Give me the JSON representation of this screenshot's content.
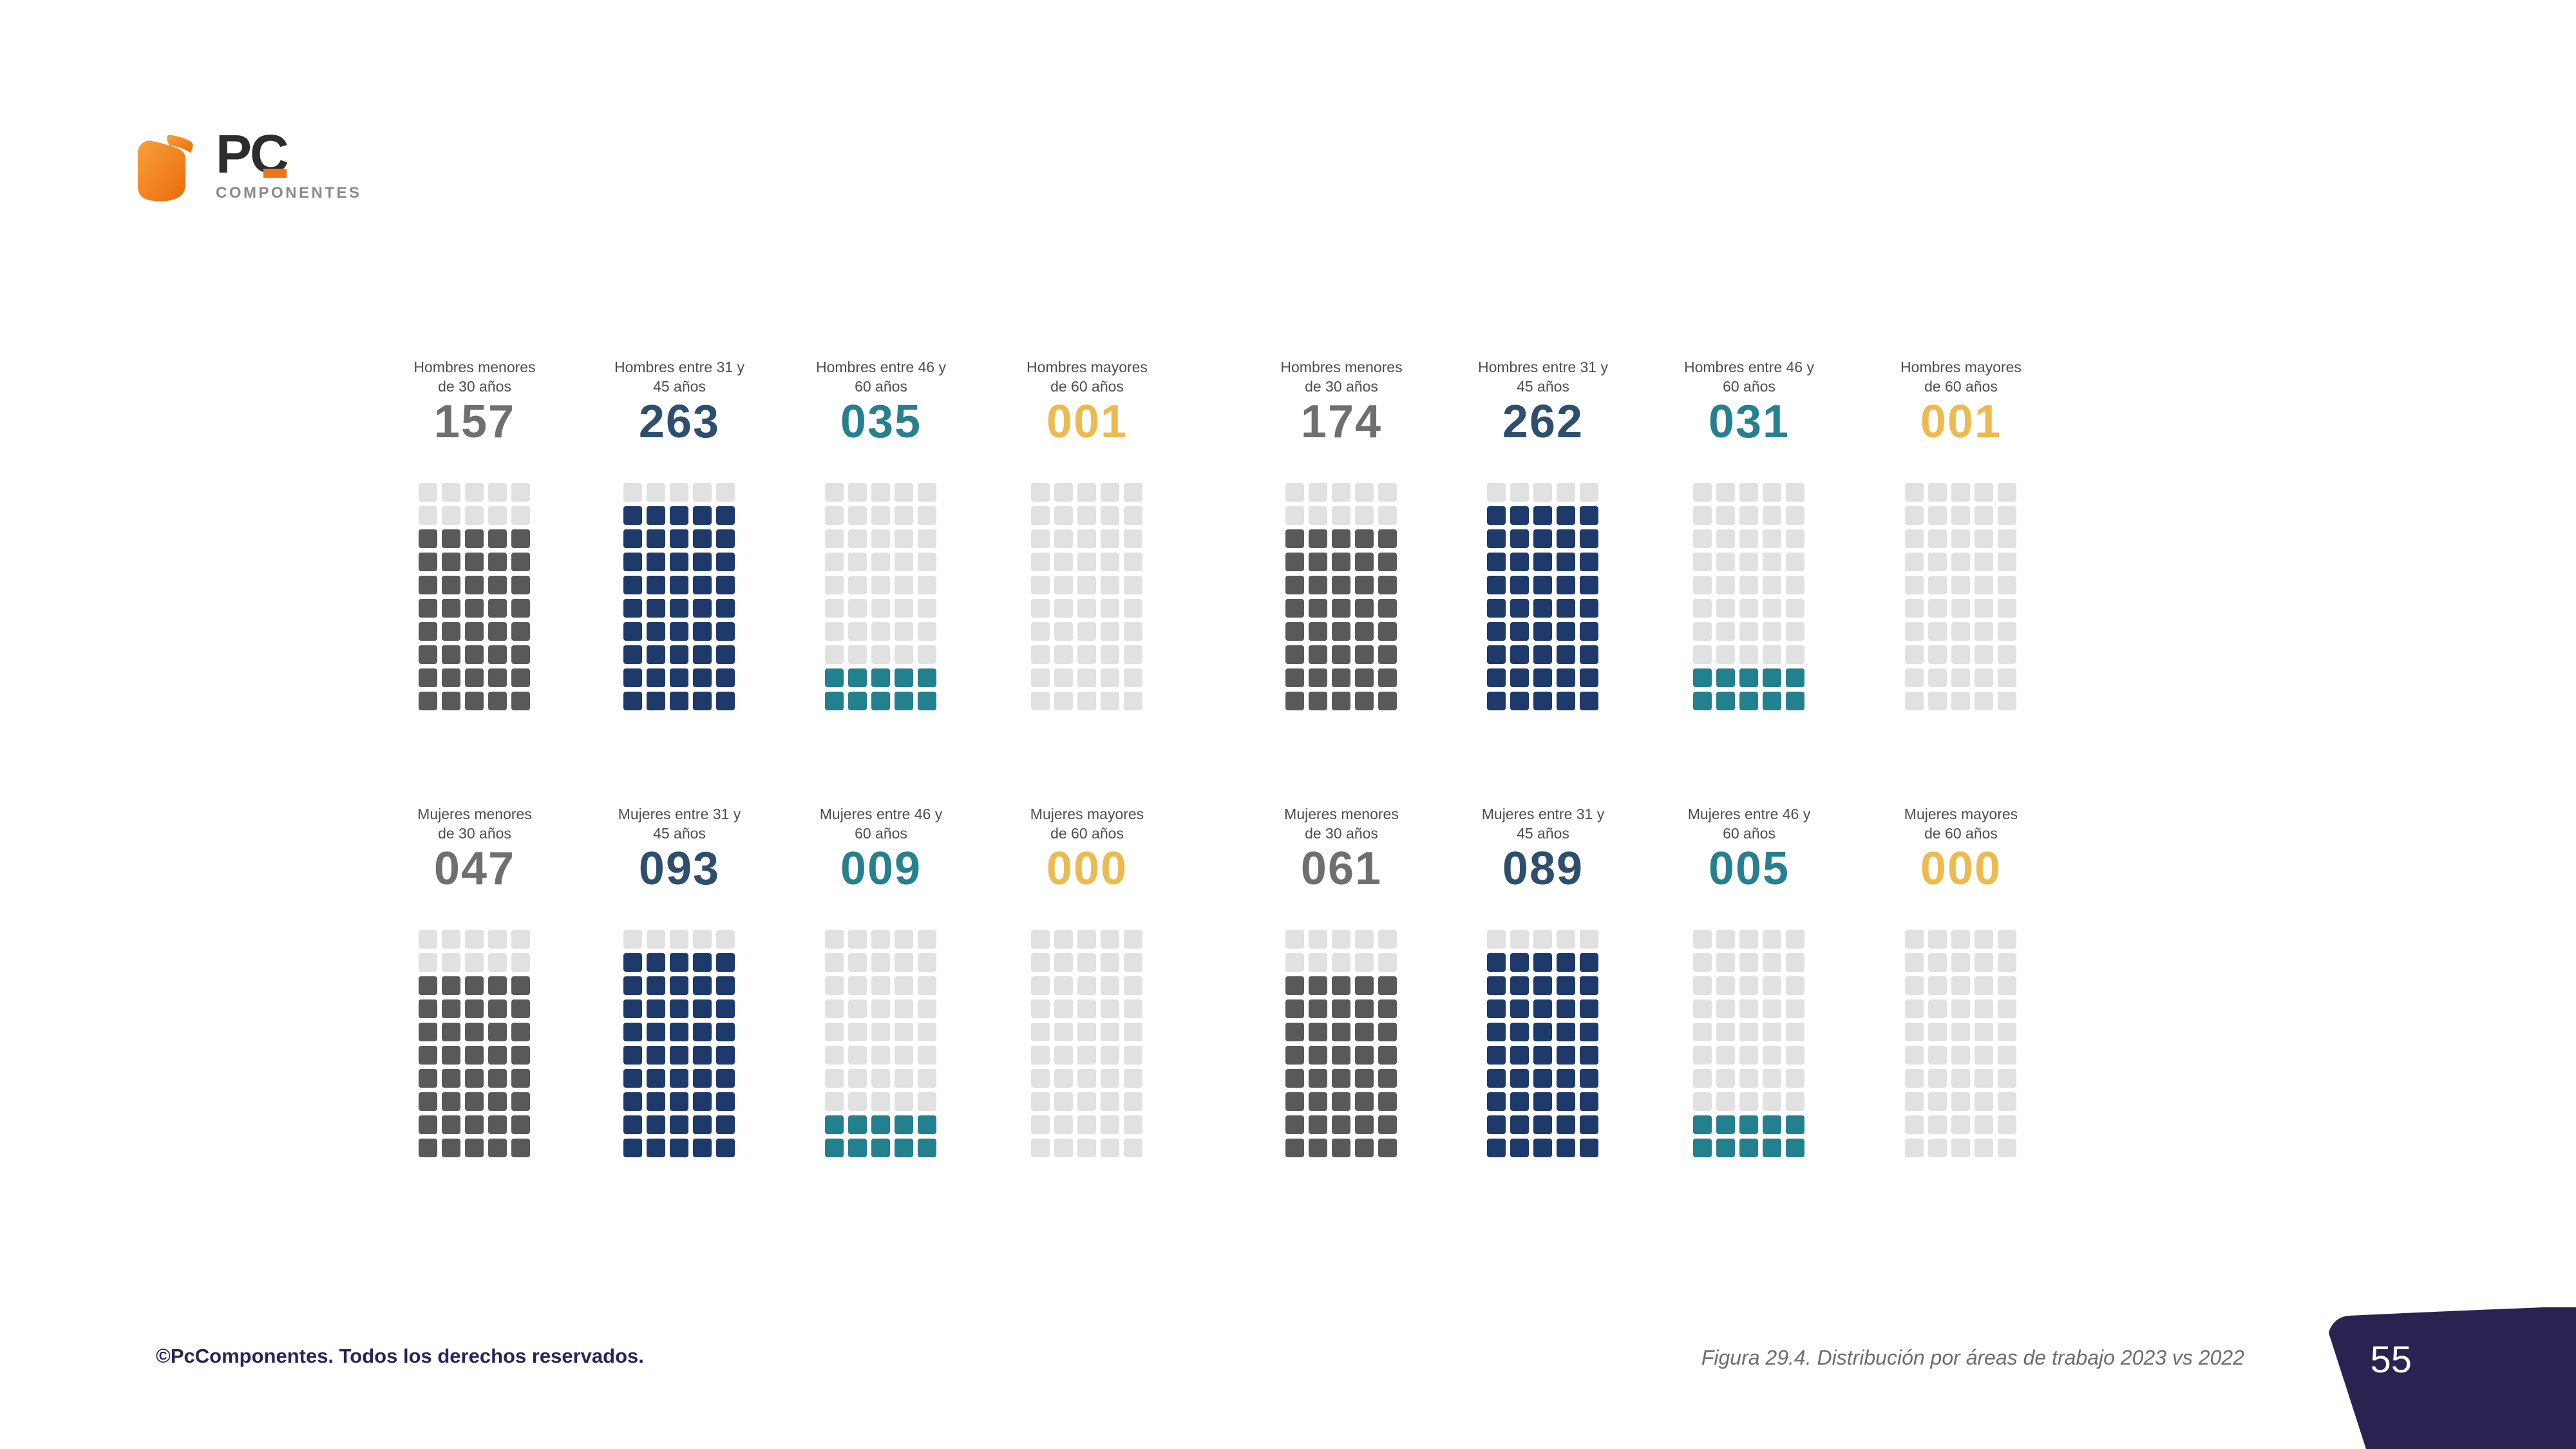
{
  "logo": {
    "brand": "PC",
    "subbrand": "COMPONENTES"
  },
  "footer": {
    "copyright": "©PcComponentes. Todos los derechos reservados.",
    "caption": "Figura 29.4. Distribución por áreas de trabajo 2023 vs 2022",
    "page_number": "55"
  },
  "colors": {
    "brand_orange": "#f07413",
    "footer_navy": "#29235c",
    "badge_navy": "#2a2352",
    "label_gray": "#4d4d4d",
    "caption_gray": "#6d6d6d"
  },
  "chart_data": {
    "type": "waffle",
    "title": "Figura 29.4. Distribución por áreas de trabajo 2023 vs 2022",
    "grid": {
      "rows": 10,
      "cols": 5,
      "total_squares_per_waffle": 50
    },
    "legend_position": "none",
    "palette": {
      "gray": {
        "number": "#6f6f6f",
        "square": "#595959"
      },
      "navy": {
        "number": "#2d4f6d",
        "square": "#1e3a6b"
      },
      "teal": {
        "number": "#27808f",
        "square": "#23808e"
      },
      "yellow": {
        "number": "#ecba4e",
        "square": null
      },
      "empty_square": "#e1e1e1"
    },
    "series": [
      {
        "group": "Hombres",
        "cells": [
          {
            "label_line1": "Hombres menores",
            "label_line2": "de 30 años",
            "display": "157",
            "value": 157,
            "color": "gray",
            "empty_rows": 2,
            "filled_rows": 8
          },
          {
            "label_line1": "Hombres entre 31 y",
            "label_line2": "45 años",
            "display": "263",
            "value": 263,
            "color": "navy",
            "empty_rows": 1,
            "filled_rows": 9
          },
          {
            "label_line1": "Hombres entre 46 y",
            "label_line2": "60 años",
            "display": "035",
            "value": 35,
            "color": "teal",
            "empty_rows": 8,
            "filled_rows": 2
          },
          {
            "label_line1": "Hombres mayores",
            "label_line2": "de 60 años",
            "display": "001",
            "value": 1,
            "color": "yellow",
            "empty_rows": 10,
            "filled_rows": 0
          },
          {
            "label_line1": "Hombres menores",
            "label_line2": "de 30 años",
            "display": "174",
            "value": 174,
            "color": "gray",
            "empty_rows": 2,
            "filled_rows": 8
          },
          {
            "label_line1": "Hombres entre 31 y",
            "label_line2": "45 años",
            "display": "262",
            "value": 262,
            "color": "navy",
            "empty_rows": 1,
            "filled_rows": 9
          },
          {
            "label_line1": "Hombres entre 46 y",
            "label_line2": "60 años",
            "display": "031",
            "value": 31,
            "color": "teal",
            "empty_rows": 8,
            "filled_rows": 2
          },
          {
            "label_line1": "Hombres mayores",
            "label_line2": "de 60 años",
            "display": "001",
            "value": 1,
            "color": "yellow",
            "empty_rows": 10,
            "filled_rows": 0
          }
        ]
      },
      {
        "group": "Mujeres",
        "cells": [
          {
            "label_line1": "Mujeres menores",
            "label_line2": "de 30 años",
            "display": "047",
            "value": 47,
            "color": "gray",
            "empty_rows": 2,
            "filled_rows": 8
          },
          {
            "label_line1": "Mujeres entre 31 y",
            "label_line2": "45 años",
            "display": "093",
            "value": 93,
            "color": "navy",
            "empty_rows": 1,
            "filled_rows": 9
          },
          {
            "label_line1": "Mujeres entre 46 y",
            "label_line2": "60 años",
            "display": "009",
            "value": 9,
            "color": "teal",
            "empty_rows": 8,
            "filled_rows": 2
          },
          {
            "label_line1": "Mujeres mayores",
            "label_line2": "de 60 años",
            "display": "000",
            "value": 0,
            "color": "yellow",
            "empty_rows": 10,
            "filled_rows": 0
          },
          {
            "label_line1": "Mujeres menores",
            "label_line2": "de 30 años",
            "display": "061",
            "value": 61,
            "color": "gray",
            "empty_rows": 2,
            "filled_rows": 8
          },
          {
            "label_line1": "Mujeres entre 31 y",
            "label_line2": "45 años",
            "display": "089",
            "value": 89,
            "color": "navy",
            "empty_rows": 1,
            "filled_rows": 9
          },
          {
            "label_line1": "Mujeres entre 46 y",
            "label_line2": "60 años",
            "display": "005",
            "value": 5,
            "color": "teal",
            "empty_rows": 8,
            "filled_rows": 2
          },
          {
            "label_line1": "Mujeres mayores",
            "label_line2": "de 60 años",
            "display": "000",
            "value": 0,
            "color": "yellow",
            "empty_rows": 10,
            "filled_rows": 0
          }
        ]
      }
    ]
  }
}
